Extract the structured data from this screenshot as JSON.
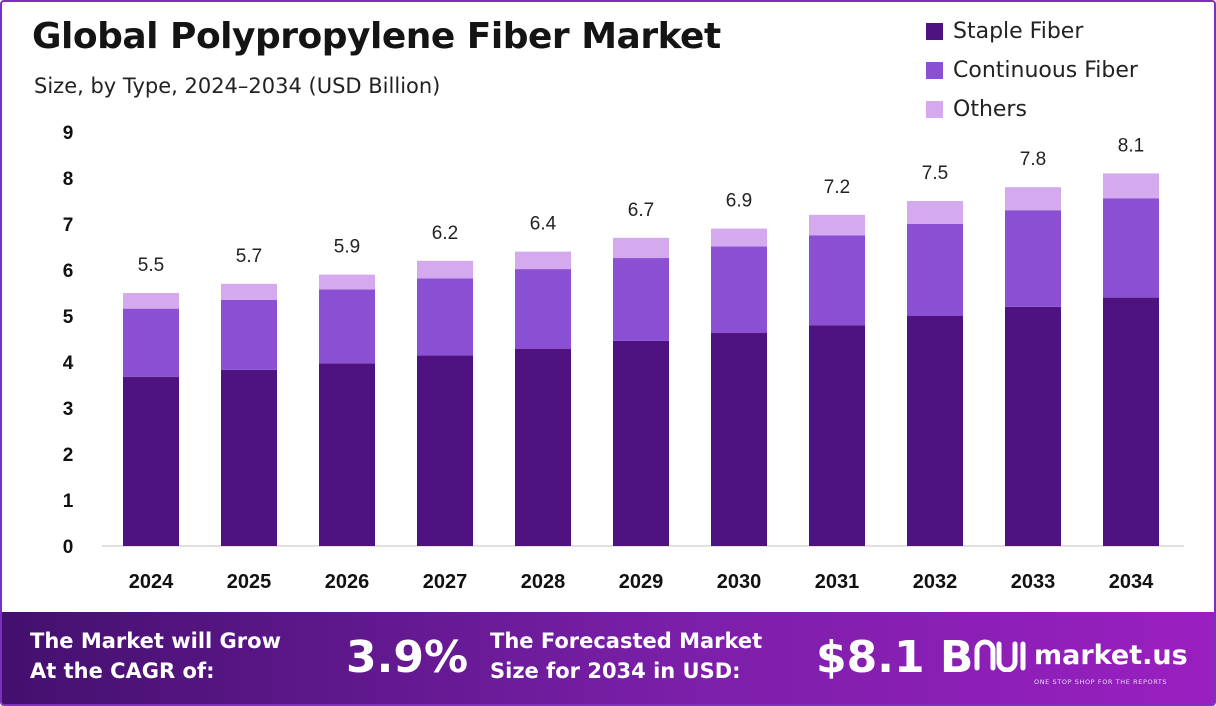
{
  "title": "Global Polypropylene Fiber Market",
  "subtitle": "Size, by Type, 2024–2034 (USD Billion)",
  "colors": {
    "staple": "#4e1380",
    "continuous": "#8b4fd4",
    "others": "#d4a9ee",
    "footer": "#6a1a9a"
  },
  "chart_data": {
    "type": "bar",
    "stacked": true,
    "categories": [
      "2024",
      "2025",
      "2026",
      "2027",
      "2028",
      "2029",
      "2030",
      "2031",
      "2032",
      "2033",
      "2034"
    ],
    "series": [
      {
        "name": "Staple Fiber",
        "values": [
          3.68,
          3.83,
          3.97,
          4.14,
          4.29,
          4.46,
          4.63,
          4.8,
          5.0,
          5.2,
          5.4
        ]
      },
      {
        "name": "Continuous Fiber",
        "values": [
          1.48,
          1.52,
          1.61,
          1.68,
          1.73,
          1.8,
          1.88,
          1.95,
          2.0,
          2.1,
          2.16
        ]
      },
      {
        "name": "Others",
        "values": [
          0.34,
          0.35,
          0.32,
          0.38,
          0.38,
          0.44,
          0.39,
          0.45,
          0.5,
          0.5,
          0.54
        ]
      }
    ],
    "totals": [
      "5.5",
      "5.7",
      "5.9",
      "6.2",
      "6.4",
      "6.7",
      "6.9",
      "7.2",
      "7.5",
      "7.8",
      "8.1"
    ],
    "yticks": [
      "0",
      "1",
      "2",
      "3",
      "4",
      "5",
      "6",
      "7",
      "8",
      "9"
    ],
    "ylim": [
      0,
      9
    ],
    "legend_position": "top-right",
    "grid": false
  },
  "footer": {
    "cagr_label_1": "The Market will Grow",
    "cagr_label_2": "At the CAGR of:",
    "cagr_value": "3.9%",
    "size_label_1": "The Forecasted Market",
    "size_label_2": "Size for 2034 in USD:",
    "size_value": "$8.1 B",
    "brand": "market.us",
    "tagline": "ONE STOP SHOP FOR THE REPORTS"
  }
}
